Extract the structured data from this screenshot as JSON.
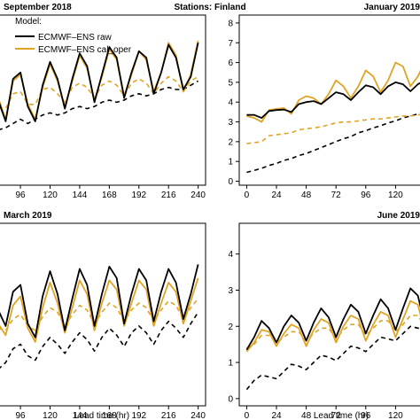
{
  "figure": {
    "suptitle": "Stations: Finland",
    "legend": {
      "title": "Model:",
      "placement": "top-left of first panel"
    }
  },
  "chart_data": [
    {
      "type": "line",
      "title": "September 2018",
      "xlabel": "",
      "ylabel": "",
      "xlim": [
        78,
        246
      ],
      "ylim": [
        0,
        8
      ],
      "xticks": [
        96,
        120,
        144,
        168,
        192,
        216,
        240
      ],
      "yticks": [],
      "grid": false,
      "series": [
        {
          "name": "ECMWF–ENS raw",
          "color": "#000000",
          "dash": "solid",
          "x": [
            78,
            84,
            90,
            96,
            102,
            108,
            114,
            120,
            126,
            132,
            138,
            144,
            150,
            156,
            162,
            168,
            174,
            180,
            186,
            192,
            198,
            204,
            210,
            216,
            222,
            228,
            234,
            240
          ],
          "y": [
            4.0,
            3.0,
            5.0,
            5.3,
            3.7,
            3.0,
            4.7,
            5.8,
            5.0,
            3.6,
            5.0,
            6.2,
            5.6,
            3.9,
            5.2,
            6.5,
            6.0,
            4.1,
            5.3,
            6.3,
            6.0,
            4.3,
            5.3,
            6.6,
            6.0,
            4.5,
            5.1,
            6.7
          ]
        },
        {
          "name": "ECMWF–ENS cal_oper",
          "color": "#e0a424",
          "dash": "solid",
          "x": [
            78,
            84,
            90,
            96,
            102,
            108,
            114,
            120,
            126,
            132,
            138,
            144,
            150,
            156,
            162,
            168,
            174,
            180,
            186,
            192,
            198,
            204,
            210,
            216,
            222,
            228,
            234,
            240
          ],
          "y": [
            4.1,
            3.1,
            4.9,
            5.2,
            3.8,
            3.1,
            4.6,
            5.7,
            4.9,
            3.7,
            4.9,
            6.1,
            5.5,
            4.0,
            5.1,
            6.4,
            5.9,
            4.2,
            5.2,
            6.3,
            5.9,
            4.4,
            5.3,
            6.7,
            6.1,
            4.4,
            5.2,
            6.8
          ]
        },
        {
          "name": "",
          "color": "#e0a424",
          "dash": "dashed",
          "x": [
            78,
            84,
            90,
            96,
            102,
            108,
            114,
            120,
            126,
            132,
            138,
            144,
            150,
            156,
            162,
            168,
            174,
            180,
            186,
            192,
            198,
            204,
            210,
            216,
            222,
            228,
            234,
            240
          ],
          "y": [
            3.6,
            3.6,
            4.3,
            4.4,
            3.8,
            3.8,
            4.5,
            4.6,
            4.3,
            3.9,
            4.6,
            4.8,
            4.6,
            4.1,
            4.7,
            4.9,
            4.7,
            4.2,
            4.8,
            5.0,
            4.8,
            4.3,
            4.8,
            5.1,
            4.9,
            4.4,
            4.9,
            5.1
          ]
        },
        {
          "name": "",
          "color": "#000000",
          "dash": "dashed",
          "x": [
            78,
            84,
            90,
            96,
            102,
            108,
            114,
            120,
            126,
            132,
            138,
            144,
            150,
            156,
            162,
            168,
            174,
            180,
            186,
            192,
            198,
            204,
            210,
            216,
            222,
            228,
            234,
            240
          ],
          "y": [
            2.6,
            2.7,
            2.9,
            3.1,
            2.9,
            3.1,
            3.3,
            3.4,
            3.3,
            3.4,
            3.6,
            3.7,
            3.6,
            3.7,
            3.9,
            4.0,
            3.9,
            4.0,
            4.2,
            4.3,
            4.2,
            4.3,
            4.5,
            4.6,
            4.5,
            4.5,
            4.7,
            4.9
          ]
        }
      ]
    },
    {
      "type": "line",
      "title": "January 2019",
      "xlabel": "",
      "ylabel": "",
      "xlim": [
        -6,
        144
      ],
      "ylim": [
        -0.2,
        8.4
      ],
      "xticks": [
        0,
        24,
        48,
        72,
        96,
        120
      ],
      "yticks": [
        0,
        1,
        2,
        3,
        4,
        5,
        6,
        7,
        8
      ],
      "grid": false,
      "series": [
        {
          "name": "ECMWF–ENS raw",
          "color": "#000000",
          "dash": "solid",
          "x": [
            0,
            6,
            12,
            18,
            24,
            30,
            36,
            42,
            48,
            54,
            60,
            66,
            72,
            78,
            84,
            90,
            96,
            102,
            108,
            114,
            120,
            126,
            132,
            138,
            144
          ],
          "y": [
            3.35,
            3.35,
            3.2,
            3.55,
            3.6,
            3.62,
            3.5,
            3.9,
            4.0,
            4.05,
            3.9,
            4.2,
            4.5,
            4.4,
            4.1,
            4.5,
            4.85,
            4.75,
            4.4,
            4.8,
            5.0,
            4.9,
            4.55,
            4.9,
            5.1
          ]
        },
        {
          "name": "ECMWF–ENS cal_oper",
          "color": "#e0a424",
          "dash": "solid",
          "x": [
            0,
            6,
            12,
            18,
            24,
            30,
            36,
            42,
            48,
            54,
            60,
            66,
            72,
            78,
            84,
            90,
            96,
            102,
            108,
            114,
            120,
            126,
            132,
            138,
            144
          ],
          "y": [
            3.3,
            3.2,
            3.0,
            3.6,
            3.65,
            3.7,
            3.4,
            4.1,
            4.3,
            4.2,
            3.9,
            4.4,
            5.1,
            4.8,
            4.2,
            4.8,
            5.6,
            5.3,
            4.5,
            5.1,
            6.0,
            5.8,
            4.8,
            5.3,
            6.1
          ]
        },
        {
          "name": "",
          "color": "#e0a424",
          "dash": "dashed",
          "x": [
            0,
            6,
            12,
            18,
            24,
            30,
            36,
            42,
            48,
            54,
            60,
            66,
            72,
            78,
            84,
            90,
            96,
            102,
            108,
            114,
            120,
            126,
            132,
            138,
            144
          ],
          "y": [
            1.9,
            1.95,
            2.0,
            2.3,
            2.35,
            2.4,
            2.45,
            2.6,
            2.65,
            2.7,
            2.75,
            2.85,
            2.95,
            3.0,
            3.0,
            3.05,
            3.1,
            3.15,
            3.15,
            3.2,
            3.25,
            3.3,
            3.3,
            3.35,
            3.4
          ]
        },
        {
          "name": "",
          "color": "#000000",
          "dash": "dashed",
          "x": [
            0,
            6,
            12,
            18,
            24,
            30,
            36,
            42,
            48,
            54,
            60,
            66,
            72,
            78,
            84,
            90,
            96,
            102,
            108,
            114,
            120,
            126,
            132,
            138,
            144
          ],
          "y": [
            0.45,
            0.55,
            0.65,
            0.8,
            0.9,
            1.05,
            1.15,
            1.3,
            1.4,
            1.55,
            1.7,
            1.85,
            2.0,
            2.15,
            2.25,
            2.45,
            2.55,
            2.7,
            2.8,
            2.95,
            3.05,
            3.2,
            3.3,
            3.4,
            3.5
          ]
        }
      ]
    },
    {
      "type": "line",
      "title": "March 2019",
      "xlabel": "Lead time (hr)",
      "ylabel": "",
      "xlim": [
        78,
        246
      ],
      "ylim": [
        0,
        8
      ],
      "xticks": [
        96,
        120,
        144,
        168,
        192,
        216,
        240
      ],
      "yticks": [],
      "grid": false,
      "series": [
        {
          "name": "ECMWF–ENS raw",
          "color": "#000000",
          "dash": "solid",
          "x": [
            78,
            84,
            90,
            96,
            102,
            108,
            114,
            120,
            126,
            132,
            138,
            144,
            150,
            156,
            162,
            168,
            174,
            180,
            186,
            192,
            198,
            204,
            210,
            216,
            222,
            228,
            234,
            240
          ],
          "y": [
            4.2,
            3.5,
            5.0,
            5.3,
            3.6,
            3.0,
            4.8,
            5.9,
            4.9,
            3.3,
            4.7,
            6.0,
            5.3,
            3.5,
            4.9,
            6.1,
            5.6,
            3.6,
            4.9,
            6.0,
            5.5,
            3.7,
            5.0,
            6.0,
            5.4,
            3.8,
            4.9,
            6.2
          ]
        },
        {
          "name": "ECMWF–ENS cal_oper",
          "color": "#e0a424",
          "dash": "solid",
          "x": [
            78,
            84,
            90,
            96,
            102,
            108,
            114,
            120,
            126,
            132,
            138,
            144,
            150,
            156,
            162,
            168,
            174,
            180,
            186,
            192,
            198,
            204,
            210,
            216,
            222,
            228,
            234,
            240
          ],
          "y": [
            3.6,
            3.1,
            4.4,
            4.8,
            3.4,
            2.8,
            4.3,
            5.4,
            4.5,
            3.2,
            4.3,
            5.5,
            4.9,
            3.3,
            4.5,
            5.5,
            5.1,
            3.5,
            4.5,
            5.5,
            5.1,
            3.5,
            4.5,
            5.4,
            5.0,
            3.6,
            4.6,
            5.6
          ]
        },
        {
          "name": "",
          "color": "#e0a424",
          "dash": "dashed",
          "x": [
            78,
            84,
            90,
            96,
            102,
            108,
            114,
            120,
            126,
            132,
            138,
            144,
            150,
            156,
            162,
            168,
            174,
            180,
            186,
            192,
            198,
            204,
            210,
            216,
            222,
            228,
            234,
            240
          ],
          "y": [
            3.4,
            3.3,
            3.8,
            4.0,
            3.5,
            3.3,
            3.9,
            4.3,
            4.1,
            3.5,
            4.0,
            4.4,
            4.2,
            3.6,
            4.1,
            4.5,
            4.3,
            3.7,
            4.2,
            4.5,
            4.3,
            3.7,
            4.2,
            4.6,
            4.4,
            3.8,
            4.3,
            4.7
          ]
        },
        {
          "name": "",
          "color": "#000000",
          "dash": "dashed",
          "x": [
            78,
            84,
            90,
            96,
            102,
            108,
            114,
            120,
            126,
            132,
            138,
            144,
            150,
            156,
            162,
            168,
            174,
            180,
            186,
            192,
            198,
            204,
            210,
            216,
            222,
            228,
            234,
            240
          ],
          "y": [
            1.6,
            1.9,
            2.5,
            2.7,
            2.2,
            2.0,
            2.6,
            3.0,
            2.7,
            2.3,
            2.8,
            3.2,
            2.9,
            2.4,
            3.0,
            3.4,
            3.1,
            2.6,
            3.2,
            3.5,
            3.2,
            2.7,
            3.3,
            3.7,
            3.4,
            3.0,
            3.6,
            4.1
          ]
        }
      ]
    },
    {
      "type": "line",
      "title": "June 2019",
      "xlabel": "Lead time (hr)",
      "ylabel": "",
      "xlim": [
        -6,
        144
      ],
      "ylim": [
        -0.2,
        4.85
      ],
      "xticks": [
        0,
        24,
        48,
        72,
        96,
        120
      ],
      "yticks": [
        0,
        1,
        2,
        3,
        4
      ],
      "grid": false,
      "series": [
        {
          "name": "ECMWF–ENS raw",
          "color": "#000000",
          "dash": "solid",
          "x": [
            0,
            6,
            12,
            18,
            24,
            30,
            36,
            42,
            48,
            54,
            60,
            66,
            72,
            78,
            84,
            90,
            96,
            102,
            108,
            114,
            120,
            126,
            132,
            138,
            144
          ],
          "y": [
            1.35,
            1.7,
            2.15,
            1.95,
            1.55,
            2.0,
            2.3,
            2.1,
            1.6,
            2.1,
            2.5,
            2.25,
            1.7,
            2.2,
            2.6,
            2.4,
            1.8,
            2.3,
            2.75,
            2.5,
            1.9,
            2.5,
            3.05,
            2.85,
            2.0
          ]
        },
        {
          "name": "ECMWF–ENS cal_oper",
          "color": "#e0a424",
          "dash": "solid",
          "x": [
            0,
            6,
            12,
            18,
            24,
            30,
            36,
            42,
            48,
            54,
            60,
            66,
            72,
            78,
            84,
            90,
            96,
            102,
            108,
            114,
            120,
            126,
            132,
            138,
            144
          ],
          "y": [
            1.3,
            1.55,
            1.9,
            1.85,
            1.45,
            1.8,
            2.05,
            1.95,
            1.45,
            1.9,
            2.2,
            2.1,
            1.55,
            2.0,
            2.3,
            2.2,
            1.6,
            2.05,
            2.4,
            2.3,
            1.7,
            2.2,
            2.7,
            2.6,
            1.8
          ]
        },
        {
          "name": "",
          "color": "#e0a424",
          "dash": "dashed",
          "x": [
            0,
            6,
            12,
            18,
            24,
            30,
            36,
            42,
            48,
            54,
            60,
            66,
            72,
            78,
            84,
            90,
            96,
            102,
            108,
            114,
            120,
            126,
            132,
            138,
            144
          ],
          "y": [
            1.4,
            1.5,
            1.75,
            1.75,
            1.55,
            1.7,
            1.85,
            1.85,
            1.6,
            1.8,
            1.95,
            1.95,
            1.65,
            1.9,
            2.05,
            2.05,
            1.75,
            1.95,
            2.15,
            2.15,
            1.85,
            2.05,
            2.3,
            2.3,
            1.95
          ]
        },
        {
          "name": "",
          "color": "#000000",
          "dash": "dashed",
          "x": [
            0,
            6,
            12,
            18,
            24,
            30,
            36,
            42,
            48,
            54,
            60,
            66,
            72,
            78,
            84,
            90,
            96,
            102,
            108,
            114,
            120,
            126,
            132,
            138,
            144
          ],
          "y": [
            0.25,
            0.5,
            0.65,
            0.6,
            0.55,
            0.75,
            0.95,
            0.9,
            0.8,
            1.0,
            1.2,
            1.15,
            1.05,
            1.25,
            1.45,
            1.4,
            1.3,
            1.5,
            1.7,
            1.65,
            1.6,
            1.8,
            2.0,
            1.95,
            1.9
          ]
        }
      ]
    }
  ]
}
